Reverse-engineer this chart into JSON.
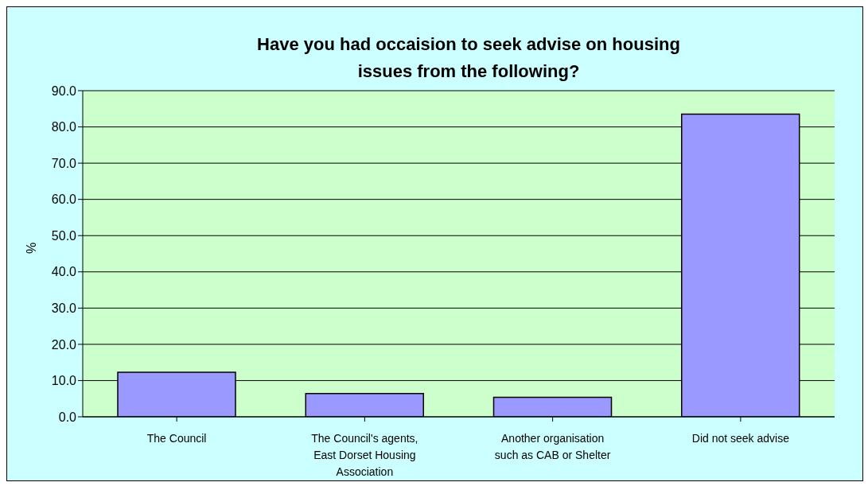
{
  "chart_data": {
    "type": "bar",
    "title": "Have you had occaision to seek advise on housing issues from the following?",
    "ylabel": "%",
    "categories": [
      "The Council",
      "The Council's agents, East Dorset Housing Association",
      "Another organisation such as CAB or Shelter",
      "Did not seek advise"
    ],
    "values": [
      12.3,
      6.4,
      5.4,
      83.5
    ],
    "color": "#9999ff",
    "ylim": [
      0,
      90
    ],
    "yticks": [
      {
        "value": 0,
        "label": "0.0"
      },
      {
        "value": 10,
        "label": "10.0"
      },
      {
        "value": 20,
        "label": "20.0"
      },
      {
        "value": 30,
        "label": "30.0"
      },
      {
        "value": 40,
        "label": "40.0"
      },
      {
        "value": 50,
        "label": "50.0"
      },
      {
        "value": 60,
        "label": "60.0"
      },
      {
        "value": 70,
        "label": "70.0"
      },
      {
        "value": 80,
        "label": "80.0"
      },
      {
        "value": 90,
        "label": "90.0"
      }
    ],
    "grid": "y",
    "legend": false
  }
}
